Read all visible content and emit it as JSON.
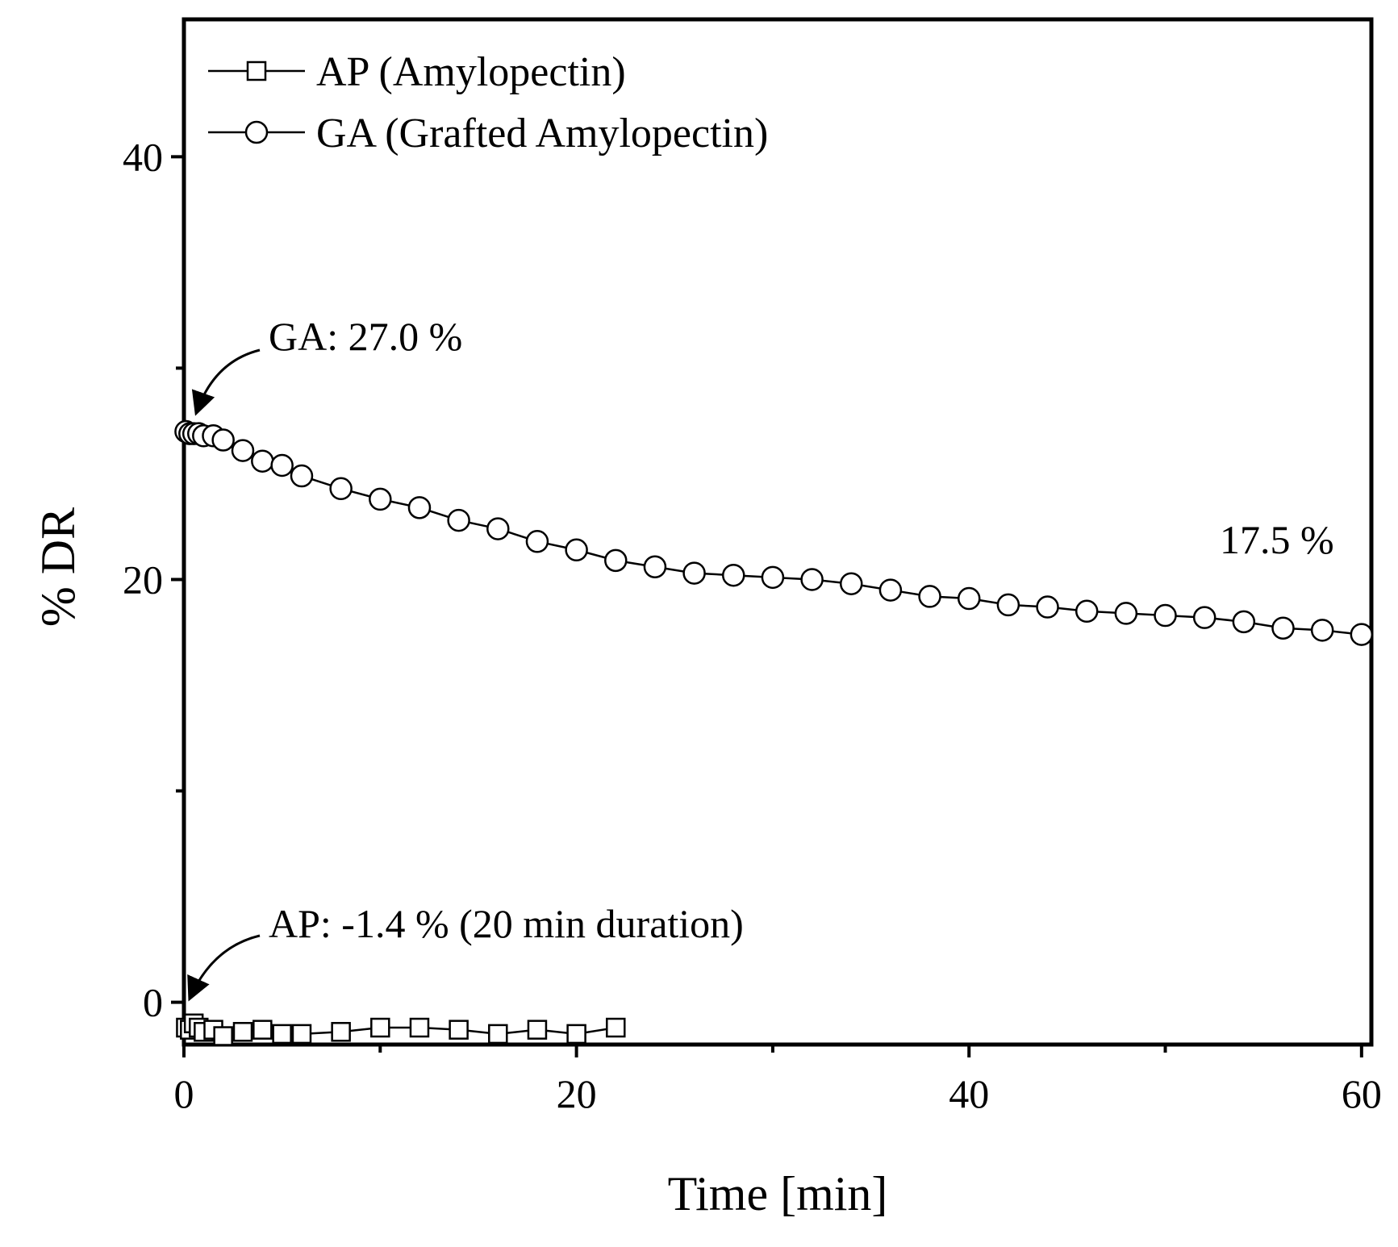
{
  "chart_data": {
    "type": "line",
    "xlabel": "Time [min]",
    "ylabel": "% DR",
    "xlim": [
      0,
      60.5
    ],
    "ylim": [
      -2,
      46.5
    ],
    "x_ticks": [
      0,
      20,
      40,
      60
    ],
    "x_tick_labels": [
      "0",
      "20",
      "40",
      "60"
    ],
    "x_minor_ticks": [
      10,
      30,
      50
    ],
    "y_ticks": [
      0,
      20,
      40
    ],
    "y_tick_labels": [
      "0",
      "20",
      "40"
    ],
    "y_minor_ticks": [
      10,
      30
    ],
    "grid": false,
    "legend_position": "top-left",
    "series": [
      {
        "name": "AP (Amylopectin)",
        "marker": "square",
        "points": [
          [
            0.1,
            -1.2
          ],
          [
            0.3,
            -1.3
          ],
          [
            0.5,
            -1.0
          ],
          [
            0.75,
            -1.2
          ],
          [
            1.0,
            -1.4
          ],
          [
            1.5,
            -1.3
          ],
          [
            2.0,
            -1.6
          ],
          [
            3.0,
            -1.4
          ],
          [
            4.0,
            -1.3
          ],
          [
            5.0,
            -1.5
          ],
          [
            6.0,
            -1.5
          ],
          [
            8.0,
            -1.4
          ],
          [
            10.0,
            -1.2
          ],
          [
            12.0,
            -1.2
          ],
          [
            14.0,
            -1.3
          ],
          [
            16.0,
            -1.5
          ],
          [
            18.0,
            -1.3
          ],
          [
            20.0,
            -1.5
          ],
          [
            22.0,
            -1.2
          ]
        ]
      },
      {
        "name": "GA (Grafted Amylopectin)",
        "marker": "circle",
        "points": [
          [
            0.1,
            27.0
          ],
          [
            0.3,
            26.9
          ],
          [
            0.5,
            26.9
          ],
          [
            0.75,
            26.9
          ],
          [
            1.0,
            26.8
          ],
          [
            1.5,
            26.8
          ],
          [
            2.0,
            26.6
          ],
          [
            3.0,
            26.1
          ],
          [
            4.0,
            25.6
          ],
          [
            5.0,
            25.4
          ],
          [
            6.0,
            24.9
          ],
          [
            8.0,
            24.3
          ],
          [
            10.0,
            23.8
          ],
          [
            12.0,
            23.4
          ],
          [
            14.0,
            22.8
          ],
          [
            16.0,
            22.4
          ],
          [
            18.0,
            21.8
          ],
          [
            20.0,
            21.4
          ],
          [
            22.0,
            20.9
          ],
          [
            24.0,
            20.6
          ],
          [
            26.0,
            20.3
          ],
          [
            28.0,
            20.2
          ],
          [
            30.0,
            20.1
          ],
          [
            32.0,
            20.0
          ],
          [
            34.0,
            19.8
          ],
          [
            36.0,
            19.5
          ],
          [
            38.0,
            19.2
          ],
          [
            40.0,
            19.1
          ],
          [
            42.0,
            18.8
          ],
          [
            44.0,
            18.7
          ],
          [
            46.0,
            18.5
          ],
          [
            48.0,
            18.4
          ],
          [
            50.0,
            18.3
          ],
          [
            52.0,
            18.2
          ],
          [
            54.0,
            18.0
          ],
          [
            56.0,
            17.7
          ],
          [
            58.0,
            17.6
          ],
          [
            60.0,
            17.4
          ]
        ]
      }
    ],
    "annotations": [
      {
        "text": "GA: 27.0 %",
        "target": [
          0.3,
          27.0
        ]
      },
      {
        "text": "17.5 %"
      },
      {
        "text": "AP: -1.4 % (20 min duration)",
        "target": [
          0.1,
          -0.2
        ]
      }
    ]
  }
}
